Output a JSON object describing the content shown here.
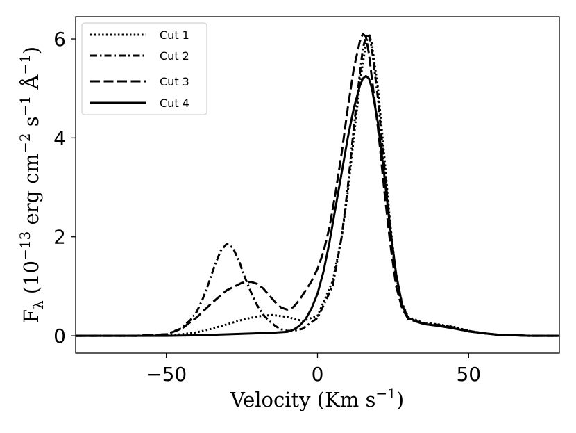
{
  "chart_data": {
    "type": "line",
    "title": "",
    "xlabel": "Velocity (Km s",
    "xlabel_sup": "−1",
    "xlabel_tail": ")",
    "ylabel_parts": {
      "f": "F",
      "lambda": "λ",
      "open": " (10",
      "exp13": "−13",
      "erg": " erg cm",
      "exp2": "−2",
      "s": " s",
      "exp1a": "−1",
      "angstrom": " Å",
      "exp1b": "−1",
      "close": ")"
    },
    "xlim": [
      -80,
      80
    ],
    "ylim": [
      -0.35,
      6.45
    ],
    "xticks": [
      -50,
      0,
      50
    ],
    "xtick_labels": [
      "−50",
      "0",
      "50"
    ],
    "yticks": [
      0,
      2,
      4,
      6
    ],
    "ytick_labels": [
      "0",
      "2",
      "4",
      "6"
    ],
    "grid": false,
    "legend_position": "top-left",
    "series": [
      {
        "name": "Cut 1",
        "style": "dotted",
        "x": [
          -80,
          -60,
          -50,
          -45,
          -40,
          -35,
          -30,
          -25,
          -20,
          -15,
          -10,
          -5,
          0,
          5,
          8,
          10,
          12,
          14,
          16,
          17,
          18,
          20,
          22,
          24,
          26,
          28,
          30,
          35,
          40,
          45,
          50,
          55,
          60,
          65,
          70,
          80
        ],
        "y": [
          0,
          0,
          0.01,
          0.03,
          0.07,
          0.14,
          0.23,
          0.32,
          0.39,
          0.42,
          0.38,
          0.3,
          0.4,
          1.1,
          2.0,
          2.9,
          4.0,
          5.1,
          5.9,
          6.1,
          5.9,
          5.0,
          3.7,
          2.3,
          1.2,
          0.65,
          0.38,
          0.26,
          0.23,
          0.18,
          0.1,
          0.05,
          0.02,
          0.01,
          0,
          0
        ]
      },
      {
        "name": "Cut 2",
        "style": "dashdot",
        "x": [
          -80,
          -60,
          -50,
          -45,
          -42,
          -40,
          -38,
          -36,
          -34,
          -32,
          -30,
          -28,
          -26,
          -24,
          -22,
          -20,
          -18,
          -16,
          -14,
          -12,
          -10,
          -8,
          -5,
          0,
          5,
          8,
          10,
          12,
          14,
          15,
          16,
          17,
          18,
          20,
          22,
          24,
          26,
          28,
          30,
          35,
          40,
          45,
          50,
          55,
          60,
          65,
          70,
          80
        ],
        "y": [
          0,
          0,
          0.03,
          0.15,
          0.32,
          0.48,
          0.74,
          1.06,
          1.42,
          1.72,
          1.86,
          1.78,
          1.52,
          1.18,
          0.88,
          0.62,
          0.43,
          0.3,
          0.2,
          0.13,
          0.1,
          0.1,
          0.14,
          0.36,
          1.0,
          2.0,
          3.0,
          4.2,
          5.3,
          5.8,
          6.05,
          6.1,
          5.8,
          4.8,
          3.5,
          2.2,
          1.1,
          0.6,
          0.36,
          0.25,
          0.22,
          0.17,
          0.1,
          0.05,
          0.02,
          0.01,
          0,
          0
        ]
      },
      {
        "name": "Cut 3",
        "style": "dashed",
        "x": [
          -80,
          -60,
          -50,
          -45,
          -40,
          -35,
          -30,
          -25,
          -22,
          -20,
          -18,
          -16,
          -14,
          -12,
          -10,
          -8,
          -6,
          -4,
          -2,
          0,
          2,
          4,
          6,
          8,
          10,
          12,
          14,
          15,
          16,
          17,
          18,
          20,
          22,
          24,
          26,
          28,
          30,
          35,
          40,
          45,
          50,
          55,
          60,
          65,
          70,
          80
        ],
        "y": [
          0,
          0,
          0.03,
          0.14,
          0.37,
          0.66,
          0.92,
          1.07,
          1.09,
          1.05,
          0.96,
          0.82,
          0.68,
          0.57,
          0.53,
          0.58,
          0.72,
          0.91,
          1.1,
          1.35,
          1.7,
          2.2,
          2.9,
          3.7,
          4.6,
          5.4,
          5.95,
          6.1,
          6.05,
          5.7,
          5.2,
          4.2,
          3.0,
          1.9,
          1.0,
          0.55,
          0.34,
          0.24,
          0.2,
          0.15,
          0.09,
          0.05,
          0.02,
          0.01,
          0,
          0
        ]
      },
      {
        "name": "Cut 4",
        "style": "solid",
        "x": [
          -80,
          -60,
          -50,
          -40,
          -30,
          -20,
          -15,
          -10,
          -8,
          -6,
          -4,
          -2,
          0,
          2,
          4,
          6,
          8,
          10,
          12,
          14,
          15,
          16,
          17,
          18,
          20,
          22,
          24,
          26,
          28,
          30,
          35,
          40,
          45,
          50,
          55,
          60,
          65,
          70,
          80
        ],
        "y": [
          0,
          0,
          0,
          0.01,
          0.03,
          0.05,
          0.06,
          0.08,
          0.12,
          0.2,
          0.33,
          0.55,
          0.85,
          1.3,
          1.9,
          2.6,
          3.3,
          4.0,
          4.6,
          5.05,
          5.2,
          5.25,
          5.2,
          5.0,
          4.3,
          3.3,
          2.2,
          1.25,
          0.62,
          0.36,
          0.24,
          0.2,
          0.15,
          0.09,
          0.05,
          0.02,
          0.01,
          0,
          0
        ]
      }
    ]
  }
}
